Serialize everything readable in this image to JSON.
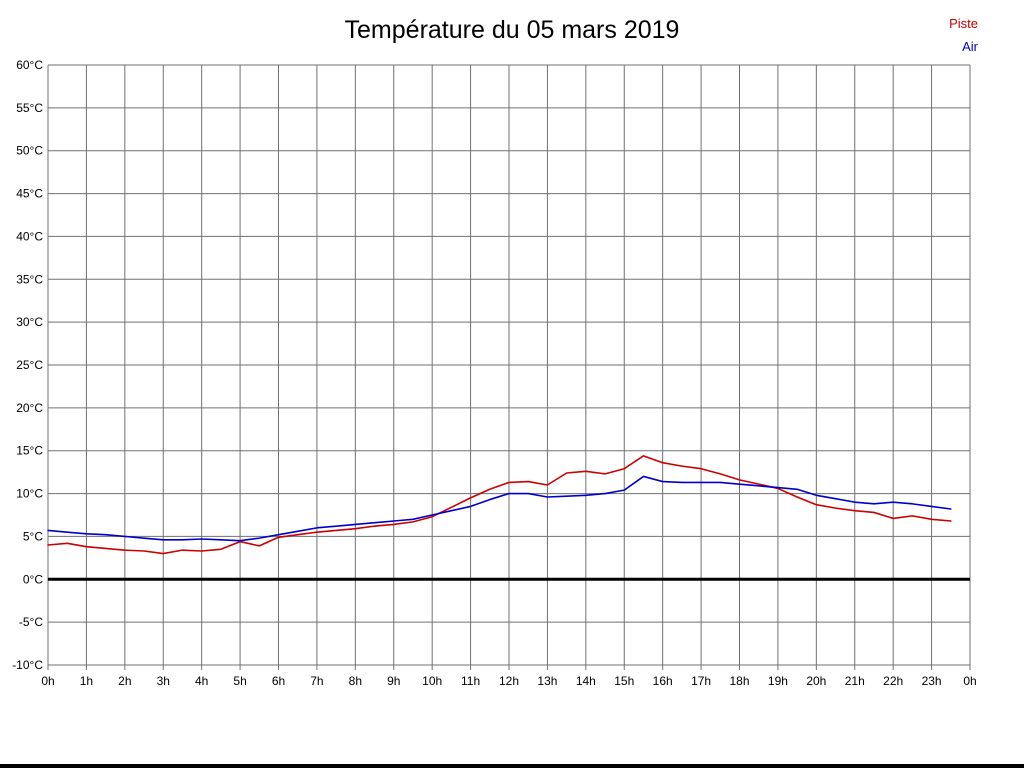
{
  "title": "Température du 05 mars 2019",
  "legend": [
    {
      "label": "Piste",
      "color": "#cc0000"
    },
    {
      "label": "Air",
      "color": "#0000cc"
    }
  ],
  "chart_data": {
    "type": "line",
    "title": "Température du 05 mars 2019",
    "xlabel": "",
    "ylabel": "",
    "xlim": [
      0,
      24
    ],
    "ylim": [
      -10,
      60
    ],
    "y_tick_step": 5,
    "y_tick_labels": [
      "60°C",
      "55°C",
      "50°C",
      "45°C",
      "40°C",
      "35°C",
      "30°C",
      "25°C",
      "20°C",
      "15°C",
      "10°C",
      "5°C",
      "0°C",
      "-5°C",
      "-10°C"
    ],
    "x_tick_labels": [
      "0h",
      "1h",
      "2h",
      "3h",
      "4h",
      "5h",
      "6h",
      "7h",
      "8h",
      "9h",
      "10h",
      "11h",
      "12h",
      "13h",
      "14h",
      "15h",
      "16h",
      "17h",
      "18h",
      "19h",
      "20h",
      "21h",
      "22h",
      "23h",
      "0h"
    ],
    "grid": true,
    "grid_color": "#707070",
    "zero_line": {
      "value": 0,
      "color": "#000000",
      "width": 3
    },
    "legend_position": "top-right",
    "x_start": 0,
    "x_step": 0.5,
    "series": [
      {
        "name": "Piste",
        "color": "#cc0000",
        "values": [
          4.0,
          4.2,
          3.8,
          3.6,
          3.4,
          3.3,
          3.0,
          3.4,
          3.3,
          3.5,
          4.4,
          3.9,
          4.9,
          5.2,
          5.5,
          5.7,
          5.9,
          6.2,
          6.4,
          6.7,
          7.3,
          8.4,
          9.5,
          10.5,
          11.3,
          11.4,
          11.0,
          12.4,
          12.6,
          12.3,
          12.9,
          14.4,
          13.6,
          13.2,
          12.9,
          12.3,
          11.6,
          11.1,
          10.6,
          9.6,
          8.7,
          8.3,
          8.0,
          7.8,
          7.1,
          7.4,
          7.0,
          6.8
        ]
      },
      {
        "name": "Air",
        "color": "#0000cc",
        "values": [
          5.7,
          5.5,
          5.3,
          5.2,
          5.0,
          4.8,
          4.6,
          4.6,
          4.7,
          4.6,
          4.5,
          4.8,
          5.2,
          5.6,
          6.0,
          6.2,
          6.4,
          6.6,
          6.8,
          7.0,
          7.5,
          8.0,
          8.5,
          9.3,
          10.0,
          10.0,
          9.6,
          9.7,
          9.8,
          10.0,
          10.4,
          12.0,
          11.4,
          11.3,
          11.3,
          11.3,
          11.1,
          10.9,
          10.7,
          10.5,
          9.8,
          9.4,
          9.0,
          8.8,
          9.0,
          8.8,
          8.5,
          8.2
        ]
      }
    ]
  }
}
